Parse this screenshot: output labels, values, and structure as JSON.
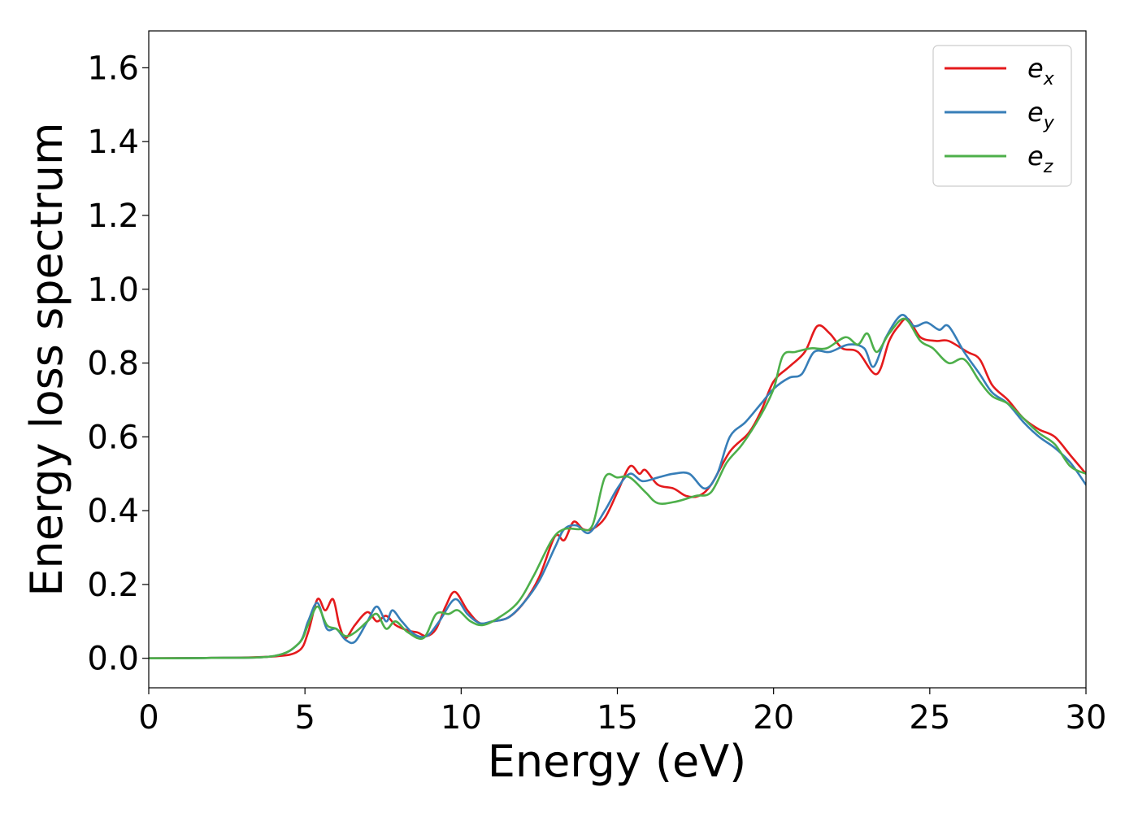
{
  "chart_data": {
    "type": "line",
    "xlabel": "Energy (eV)",
    "ylabel": "Energy loss spectrum",
    "xlim": [
      0,
      30
    ],
    "ylim": [
      -0.08,
      1.7
    ],
    "x_ticks": [
      "0",
      "5",
      "10",
      "15",
      "20",
      "25",
      "30"
    ],
    "y_ticks": [
      "0.0",
      "0.2",
      "0.4",
      "0.6",
      "0.8",
      "1.0",
      "1.2",
      "1.4",
      "1.6"
    ],
    "grid": false,
    "legend_position": "top-right",
    "series": [
      {
        "name": "e_x",
        "legend_base": "e",
        "legend_sub": "x",
        "color": "#e41a1c",
        "points": [
          [
            0,
            0
          ],
          [
            2,
            0.001
          ],
          [
            4,
            0.005
          ],
          [
            4.8,
            0.02
          ],
          [
            5.1,
            0.07
          ],
          [
            5.4,
            0.16
          ],
          [
            5.65,
            0.13
          ],
          [
            5.9,
            0.16
          ],
          [
            6.1,
            0.09
          ],
          [
            6.3,
            0.055
          ],
          [
            6.6,
            0.09
          ],
          [
            7.0,
            0.125
          ],
          [
            7.3,
            0.1
          ],
          [
            7.6,
            0.115
          ],
          [
            7.9,
            0.09
          ],
          [
            8.3,
            0.075
          ],
          [
            8.6,
            0.07
          ],
          [
            8.9,
            0.06
          ],
          [
            9.2,
            0.08
          ],
          [
            9.5,
            0.14
          ],
          [
            9.8,
            0.18
          ],
          [
            10.2,
            0.13
          ],
          [
            10.6,
            0.095
          ],
          [
            11.0,
            0.1
          ],
          [
            11.5,
            0.11
          ],
          [
            12.0,
            0.15
          ],
          [
            12.5,
            0.22
          ],
          [
            13.0,
            0.33
          ],
          [
            13.3,
            0.32
          ],
          [
            13.6,
            0.37
          ],
          [
            13.9,
            0.35
          ],
          [
            14.2,
            0.35
          ],
          [
            14.6,
            0.38
          ],
          [
            15.0,
            0.45
          ],
          [
            15.4,
            0.52
          ],
          [
            15.7,
            0.5
          ],
          [
            15.9,
            0.51
          ],
          [
            16.3,
            0.47
          ],
          [
            16.8,
            0.46
          ],
          [
            17.2,
            0.44
          ],
          [
            17.6,
            0.44
          ],
          [
            18.0,
            0.47
          ],
          [
            18.6,
            0.56
          ],
          [
            19.2,
            0.61
          ],
          [
            19.6,
            0.67
          ],
          [
            20.0,
            0.75
          ],
          [
            20.5,
            0.79
          ],
          [
            21.0,
            0.83
          ],
          [
            21.4,
            0.9
          ],
          [
            21.8,
            0.88
          ],
          [
            22.2,
            0.84
          ],
          [
            22.7,
            0.83
          ],
          [
            23.3,
            0.77
          ],
          [
            23.7,
            0.86
          ],
          [
            24.0,
            0.9
          ],
          [
            24.3,
            0.92
          ],
          [
            24.7,
            0.87
          ],
          [
            25.2,
            0.86
          ],
          [
            25.6,
            0.86
          ],
          [
            26.2,
            0.83
          ],
          [
            26.6,
            0.81
          ],
          [
            27.0,
            0.74
          ],
          [
            27.5,
            0.7
          ],
          [
            28.0,
            0.65
          ],
          [
            28.5,
            0.62
          ],
          [
            29.0,
            0.6
          ],
          [
            29.5,
            0.55
          ],
          [
            30.0,
            0.5
          ]
        ]
      },
      {
        "name": "e_y",
        "legend_base": "e",
        "legend_sub": "y",
        "color": "#377eb8",
        "points": [
          [
            0,
            0
          ],
          [
            2,
            0.001
          ],
          [
            4,
            0.006
          ],
          [
            4.8,
            0.04
          ],
          [
            5.1,
            0.1
          ],
          [
            5.4,
            0.15
          ],
          [
            5.7,
            0.08
          ],
          [
            6.0,
            0.08
          ],
          [
            6.3,
            0.05
          ],
          [
            6.6,
            0.045
          ],
          [
            7.0,
            0.1
          ],
          [
            7.3,
            0.14
          ],
          [
            7.6,
            0.1
          ],
          [
            7.8,
            0.13
          ],
          [
            8.1,
            0.1
          ],
          [
            8.5,
            0.065
          ],
          [
            8.9,
            0.06
          ],
          [
            9.3,
            0.1
          ],
          [
            9.8,
            0.16
          ],
          [
            10.2,
            0.12
          ],
          [
            10.6,
            0.095
          ],
          [
            11.0,
            0.1
          ],
          [
            11.5,
            0.11
          ],
          [
            12.0,
            0.15
          ],
          [
            12.5,
            0.21
          ],
          [
            13.0,
            0.3
          ],
          [
            13.3,
            0.35
          ],
          [
            13.7,
            0.36
          ],
          [
            14.1,
            0.34
          ],
          [
            14.6,
            0.4
          ],
          [
            15.0,
            0.46
          ],
          [
            15.4,
            0.5
          ],
          [
            15.8,
            0.48
          ],
          [
            16.3,
            0.49
          ],
          [
            16.8,
            0.5
          ],
          [
            17.3,
            0.5
          ],
          [
            17.8,
            0.46
          ],
          [
            18.2,
            0.5
          ],
          [
            18.6,
            0.6
          ],
          [
            19.1,
            0.64
          ],
          [
            19.6,
            0.69
          ],
          [
            20.0,
            0.73
          ],
          [
            20.5,
            0.76
          ],
          [
            20.9,
            0.77
          ],
          [
            21.3,
            0.83
          ],
          [
            21.8,
            0.83
          ],
          [
            22.4,
            0.85
          ],
          [
            22.9,
            0.84
          ],
          [
            23.2,
            0.79
          ],
          [
            23.6,
            0.87
          ],
          [
            24.1,
            0.93
          ],
          [
            24.5,
            0.9
          ],
          [
            24.9,
            0.91
          ],
          [
            25.3,
            0.89
          ],
          [
            25.6,
            0.9
          ],
          [
            26.1,
            0.83
          ],
          [
            26.6,
            0.77
          ],
          [
            27.0,
            0.72
          ],
          [
            27.5,
            0.69
          ],
          [
            28.0,
            0.64
          ],
          [
            28.5,
            0.6
          ],
          [
            29.0,
            0.57
          ],
          [
            29.5,
            0.53
          ],
          [
            30.0,
            0.47
          ]
        ]
      },
      {
        "name": "e_z",
        "legend_base": "e",
        "legend_sub": "z",
        "color": "#4daf4a",
        "points": [
          [
            0,
            0
          ],
          [
            2,
            0.001
          ],
          [
            4,
            0.006
          ],
          [
            4.8,
            0.04
          ],
          [
            5.1,
            0.09
          ],
          [
            5.4,
            0.14
          ],
          [
            5.7,
            0.09
          ],
          [
            6.0,
            0.08
          ],
          [
            6.3,
            0.06
          ],
          [
            6.6,
            0.07
          ],
          [
            7.0,
            0.1
          ],
          [
            7.3,
            0.12
          ],
          [
            7.6,
            0.08
          ],
          [
            7.9,
            0.1
          ],
          [
            8.3,
            0.07
          ],
          [
            8.8,
            0.055
          ],
          [
            9.2,
            0.12
          ],
          [
            9.6,
            0.12
          ],
          [
            9.9,
            0.13
          ],
          [
            10.3,
            0.1
          ],
          [
            10.7,
            0.09
          ],
          [
            11.2,
            0.11
          ],
          [
            11.8,
            0.15
          ],
          [
            12.3,
            0.22
          ],
          [
            12.9,
            0.32
          ],
          [
            13.3,
            0.35
          ],
          [
            13.8,
            0.35
          ],
          [
            14.2,
            0.36
          ],
          [
            14.6,
            0.49
          ],
          [
            15.0,
            0.49
          ],
          [
            15.4,
            0.49
          ],
          [
            15.9,
            0.45
          ],
          [
            16.3,
            0.42
          ],
          [
            16.9,
            0.425
          ],
          [
            17.5,
            0.44
          ],
          [
            18.0,
            0.45
          ],
          [
            18.5,
            0.53
          ],
          [
            19.0,
            0.58
          ],
          [
            19.6,
            0.66
          ],
          [
            20.0,
            0.73
          ],
          [
            20.3,
            0.82
          ],
          [
            20.7,
            0.83
          ],
          [
            21.2,
            0.84
          ],
          [
            21.7,
            0.84
          ],
          [
            22.3,
            0.87
          ],
          [
            22.7,
            0.85
          ],
          [
            23.0,
            0.88
          ],
          [
            23.3,
            0.83
          ],
          [
            23.7,
            0.88
          ],
          [
            24.2,
            0.92
          ],
          [
            24.7,
            0.86
          ],
          [
            25.1,
            0.84
          ],
          [
            25.6,
            0.8
          ],
          [
            26.1,
            0.81
          ],
          [
            26.6,
            0.75
          ],
          [
            27.0,
            0.71
          ],
          [
            27.5,
            0.69
          ],
          [
            28.0,
            0.65
          ],
          [
            28.5,
            0.61
          ],
          [
            29.0,
            0.58
          ],
          [
            29.5,
            0.52
          ],
          [
            30.0,
            0.5
          ]
        ]
      }
    ]
  }
}
